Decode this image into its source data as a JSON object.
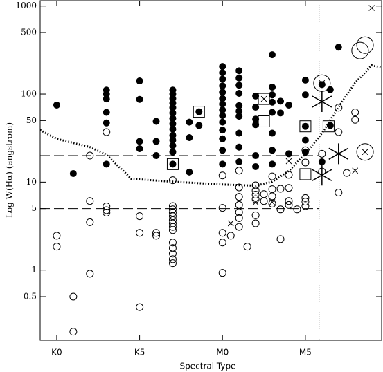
{
  "chart_data": {
    "type": "scatter",
    "log_y": true,
    "x_label": "Spectral Type",
    "y_label": "Log W(Hα) (angstrom)",
    "xlim": [
      -1,
      19.6
    ],
    "ylim": [
      0.16,
      1150
    ],
    "xticks": [
      {
        "value": 0,
        "label": "K0"
      },
      {
        "value": 5,
        "label": "K5"
      },
      {
        "value": 10,
        "label": "M0"
      },
      {
        "value": 15,
        "label": "M5"
      }
    ],
    "yticks": [
      0.5,
      1,
      5,
      10,
      50,
      100,
      500,
      1000
    ],
    "hlines": [
      20,
      5
    ],
    "vline": 15.83,
    "curve": {
      "x": [
        -1,
        0,
        2,
        3,
        4.5,
        7,
        10,
        12,
        13,
        14,
        15,
        16,
        17,
        18,
        19,
        19.6
      ],
      "y": [
        39,
        31,
        25,
        20.5,
        10.9,
        10.1,
        9.4,
        9.1,
        10.1,
        13.4,
        21,
        36,
        71,
        134,
        212,
        200
      ]
    },
    "series": [
      {
        "marker": "filled-circle",
        "color": "#000",
        "x": [
          0,
          1,
          3,
          3,
          3,
          3,
          3,
          3,
          5,
          5,
          5,
          5,
          6,
          6,
          6,
          7,
          7,
          7,
          7,
          7,
          7,
          7,
          7,
          7,
          7,
          7,
          7,
          7,
          7,
          8,
          8,
          8,
          8.58,
          8.58,
          10,
          10,
          10,
          10,
          10,
          10,
          10,
          10,
          10,
          10,
          10,
          10,
          10,
          10,
          11,
          11,
          11,
          11,
          11,
          11,
          11,
          11,
          11,
          11,
          12,
          12,
          12,
          12,
          12,
          12,
          13,
          13,
          13,
          13,
          13,
          13,
          13,
          13,
          13.5,
          13.5,
          14,
          14,
          15,
          15,
          15,
          15,
          15,
          16,
          16,
          16.5,
          16.5,
          17
        ],
        "y": [
          75,
          12.5,
          111,
          100,
          88,
          62,
          47,
          16,
          141,
          87,
          29,
          24,
          49,
          29,
          20,
          111,
          100,
          89,
          79,
          70,
          61,
          53,
          46,
          40,
          34,
          30,
          26,
          22,
          16,
          48,
          32,
          13,
          63,
          44,
          206,
          175,
          148,
          124,
          105,
          89,
          77,
          66,
          57,
          48,
          39,
          31,
          23,
          16,
          184,
          152,
          126,
          102,
          74,
          64,
          56,
          36,
          25,
          17,
          95,
          71,
          52,
          45,
          20,
          15,
          280,
          120,
          98,
          81,
          62,
          36,
          23,
          16,
          83,
          61,
          75,
          21,
          144,
          98,
          43,
          30,
          22,
          128,
          17,
          112,
          44,
          341
        ]
      },
      {
        "marker": "open-circle",
        "color": "#000",
        "x": [
          0,
          0,
          1,
          1,
          2,
          2,
          2,
          2,
          3,
          3,
          3,
          3,
          5,
          5,
          5,
          6,
          6,
          7,
          7,
          7,
          7,
          7,
          7,
          7,
          7,
          7,
          7,
          7,
          7,
          7,
          7,
          10,
          10,
          10,
          10,
          10,
          10.5,
          11,
          11,
          11,
          11,
          11,
          11,
          11,
          11.5,
          12,
          12,
          12,
          12,
          12,
          12,
          12.5,
          12.5,
          13,
          13,
          13,
          13,
          13.5,
          13.5,
          13.5,
          14,
          14,
          14,
          14,
          14.5,
          15,
          15,
          15,
          15,
          15,
          16,
          16,
          17,
          17,
          17,
          17.5,
          18,
          18
        ],
        "y": [
          2.46,
          1.85,
          0.5,
          0.2,
          20,
          6.1,
          3.5,
          0.91,
          37,
          5.3,
          4.8,
          4.5,
          4.1,
          2.65,
          0.38,
          2.65,
          2.46,
          10.5,
          5.35,
          4.9,
          4.5,
          4.1,
          3.7,
          3.4,
          3.1,
          2.85,
          2.06,
          1.78,
          1.54,
          1.33,
          1.2,
          11.9,
          5.1,
          2.65,
          2.06,
          0.93,
          2.46,
          13.5,
          8.7,
          6.8,
          5.5,
          4.55,
          3.9,
          3.1,
          1.85,
          9.2,
          8.0,
          7.2,
          6.4,
          4.2,
          3.4,
          7.3,
          6.1,
          11.6,
          8.3,
          6.9,
          5.7,
          8.4,
          4.9,
          2.25,
          12.1,
          8.6,
          6.1,
          5.5,
          4.9,
          23,
          16.7,
          6.6,
          6.0,
          5.35,
          21,
          13.2,
          70,
          37,
          7.6,
          12.7,
          62,
          51
        ]
      },
      {
        "marker": "cross",
        "color": "#000",
        "x": [
          10.5,
          12,
          12.5,
          13,
          14,
          15,
          18,
          18.6,
          16,
          19
        ],
        "y": [
          3.4,
          5.9,
          88,
          5.9,
          17.3,
          43,
          13.5,
          22,
          133,
          950
        ]
      },
      {
        "marker": "square",
        "color": "#000",
        "x": [
          8.58,
          7,
          12.5,
          12.5,
          15,
          16.4,
          15
        ],
        "y": [
          63,
          16,
          88,
          49,
          43,
          43,
          12.3
        ]
      },
      {
        "marker": "big-circle",
        "color": "#000",
        "x": [
          16,
          18.3,
          18.6,
          18.6
        ],
        "y": [
          133,
          312,
          360,
          22
        ]
      },
      {
        "marker": "star",
        "color": "#000",
        "x": [
          16,
          17,
          16
        ],
        "y": [
          82,
          21,
          12
        ]
      }
    ]
  }
}
